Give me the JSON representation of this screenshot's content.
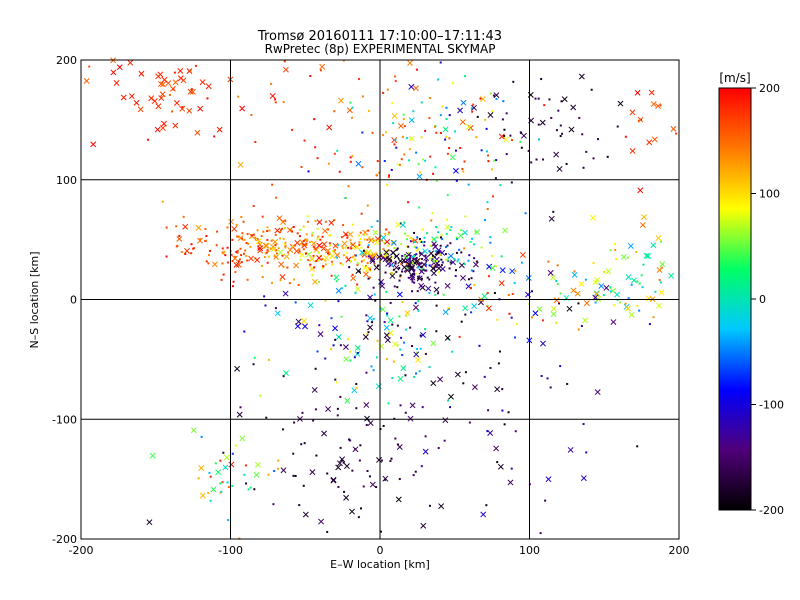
{
  "chart_data": {
    "type": "scatter",
    "title": "Tromsø 20160111 17:10:00–17:11:43",
    "subtitle": "RwPretec (8p) EXPERIMENTAL SKYMAP",
    "xlabel": "E–W location [km]",
    "ylabel": "N–S location [km]",
    "xlim": [
      -200,
      200
    ],
    "ylim": [
      -200,
      200
    ],
    "xticks": [
      -200,
      -100,
      0,
      100,
      200
    ],
    "yticks": [
      -200,
      -100,
      0,
      100,
      200
    ],
    "grid": true,
    "marker_types": [
      "dot",
      "x"
    ],
    "colorbar": {
      "label": "[m/s]",
      "min": -200,
      "max": 200,
      "ticks": [
        200,
        100,
        0,
        -100,
        -200
      ],
      "colors": [
        "#000000",
        "#50007a",
        "#0000ff",
        "#00c8ff",
        "#00ff64",
        "#ffff00",
        "#ff7800",
        "#ff0000"
      ]
    },
    "clusters": [
      {
        "cx": -140,
        "cy": 175,
        "sx": 25,
        "sy": 18,
        "n": 60,
        "xfrac": 0.6,
        "vmin": 150,
        "vmax": 200
      },
      {
        "cx": -80,
        "cy": 45,
        "sx": 30,
        "sy": 12,
        "n": 200,
        "xfrac": 0.25,
        "vmin": 120,
        "vmax": 200
      },
      {
        "cx": -20,
        "cy": 42,
        "sx": 25,
        "sy": 12,
        "n": 180,
        "xfrac": 0.2,
        "vmin": 60,
        "vmax": 200
      },
      {
        "cx": 25,
        "cy": 30,
        "sx": 15,
        "sy": 10,
        "n": 170,
        "xfrac": 0.4,
        "vmin": -200,
        "vmax": -120
      },
      {
        "cx": 40,
        "cy": 45,
        "sx": 25,
        "sy": 12,
        "n": 90,
        "xfrac": 0.2,
        "vmin": -60,
        "vmax": 100
      },
      {
        "cx": 40,
        "cy": 140,
        "sx": 30,
        "sy": 30,
        "n": 120,
        "xfrac": 0.15,
        "vmin": -120,
        "vmax": 200
      },
      {
        "cx": 110,
        "cy": 140,
        "sx": 25,
        "sy": 30,
        "n": 60,
        "xfrac": 0.3,
        "vmin": -200,
        "vmax": -150
      },
      {
        "cx": -20,
        "cy": 140,
        "sx": 40,
        "sy": 35,
        "n": 60,
        "xfrac": 0.2,
        "vmin": 120,
        "vmax": 200
      },
      {
        "cx": 0,
        "cy": -30,
        "sx": 35,
        "sy": 30,
        "n": 160,
        "xfrac": 0.3,
        "vmin": -200,
        "vmax": 120
      },
      {
        "cx": -20,
        "cy": -130,
        "sx": 40,
        "sy": 35,
        "n": 100,
        "xfrac": 0.3,
        "vmin": -200,
        "vmax": -150
      },
      {
        "cx": -100,
        "cy": -140,
        "sx": 15,
        "sy": 20,
        "n": 40,
        "xfrac": 0.3,
        "vmin": -80,
        "vmax": 200
      },
      {
        "cx": 160,
        "cy": 20,
        "sx": 25,
        "sy": 20,
        "n": 70,
        "xfrac": 0.5,
        "vmin": -50,
        "vmax": 150
      },
      {
        "cx": 100,
        "cy": 10,
        "sx": 25,
        "sy": 25,
        "n": 60,
        "xfrac": 0.4,
        "vmin": -200,
        "vmax": 200
      },
      {
        "cx": 100,
        "cy": -100,
        "sx": 40,
        "sy": 50,
        "n": 50,
        "xfrac": 0.3,
        "vmin": -200,
        "vmax": -100
      },
      {
        "cx": 175,
        "cy": 150,
        "sx": 15,
        "sy": 25,
        "n": 15,
        "xfrac": 0.5,
        "vmin": 150,
        "vmax": 200
      }
    ]
  }
}
